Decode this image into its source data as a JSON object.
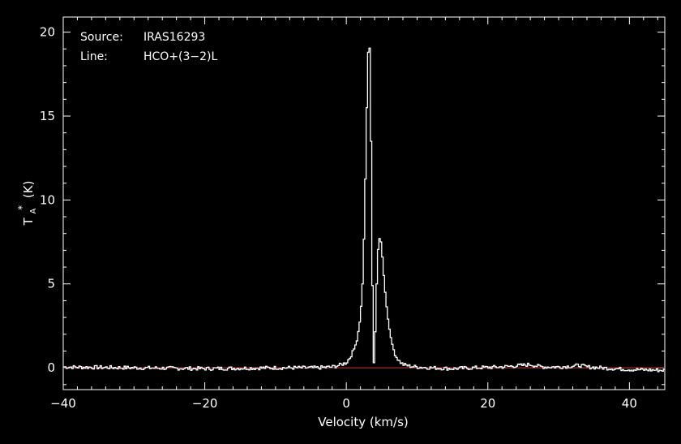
{
  "info": {
    "source_label": "Source:",
    "source_value": "IRAS16293",
    "line_label": "Line:",
    "line_value": "HCO+(3−2)L"
  },
  "colors": {
    "background": "#000000",
    "spectrum": "#ffffff",
    "baseline": "#e03030",
    "axes": "#ffffff"
  },
  "chart_data": {
    "type": "line",
    "xlabel": "Velocity (km/s)",
    "ylabel_main": "T",
    "ylabel_sup": "*",
    "ylabel_sub": "A",
    "ylabel_unit": "(K)",
    "xlim": [
      -40,
      45
    ],
    "ylim": [
      -1.3,
      20.9
    ],
    "xticks": [
      -40,
      -20,
      0,
      20,
      40
    ],
    "xtick_labels": [
      "−40",
      "−20",
      "0",
      "20",
      "40"
    ],
    "yticks": [
      0,
      5,
      10,
      15,
      20
    ],
    "ytick_labels": [
      "0",
      "5",
      "10",
      "15",
      "20"
    ],
    "grid": false,
    "baseline": 0,
    "series": [
      {
        "style": "histogram",
        "x": [
          -40,
          -30,
          -20,
          -10,
          -4,
          -2,
          -1,
          0,
          0.5,
          1,
          1.5,
          2,
          2.3,
          2.6,
          2.8,
          3.0,
          3.2,
          3.4,
          3.6,
          3.8,
          3.9,
          4.0,
          4.2,
          4.4,
          4.6,
          4.8,
          5.0,
          5.2,
          5.5,
          5.8,
          6.2,
          6.6,
          7.0,
          7.5,
          8.0,
          9.0,
          10,
          12,
          15,
          18,
          22,
          25,
          26,
          27,
          28,
          30,
          32,
          33,
          34,
          36,
          40,
          45
        ],
        "y": [
          0.05,
          0.0,
          -0.05,
          0.0,
          0.0,
          0.05,
          0.15,
          0.3,
          0.6,
          1.0,
          1.6,
          3.0,
          5.0,
          9.0,
          13.5,
          17.5,
          20.1,
          18.0,
          9.0,
          0.8,
          0.3,
          0.8,
          3.5,
          6.5,
          7.6,
          7.8,
          7.2,
          6.0,
          4.5,
          3.2,
          2.0,
          1.2,
          0.7,
          0.4,
          0.2,
          0.1,
          0.05,
          0.0,
          -0.05,
          0.0,
          0.05,
          0.15,
          0.2,
          0.1,
          0.05,
          0.05,
          0.1,
          0.15,
          0.05,
          0.0,
          -0.1,
          -0.15
        ]
      }
    ]
  }
}
